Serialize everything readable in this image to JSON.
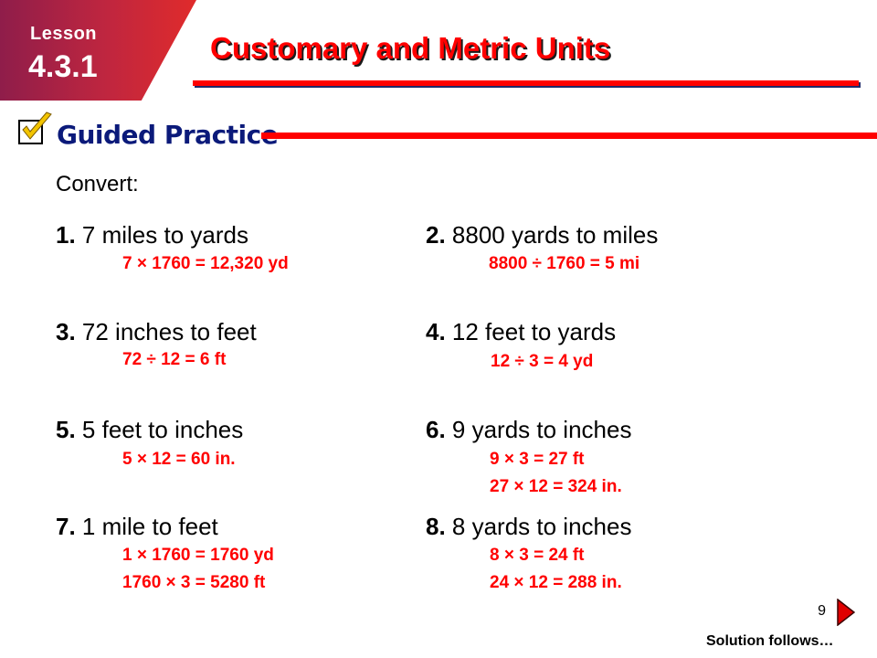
{
  "header": {
    "lesson_label": "Lesson",
    "lesson_number": "4.3.1",
    "title": "Customary and Metric Units",
    "section_label": "Guided Practice"
  },
  "prompt": "Convert:",
  "problems": [
    {
      "number": "1.",
      "text": " 7 miles to yards",
      "answers": [
        "7 × 1760 = 12,320 yd"
      ]
    },
    {
      "number": "2.",
      "text": " 8800 yards to miles",
      "answers": [
        "8800 ÷ 1760 = 5 mi"
      ]
    },
    {
      "number": "3.",
      "text": " 72 inches to feet",
      "answers": [
        "72 ÷ 12 = 6 ft"
      ]
    },
    {
      "number": "4.",
      "text": " 12 feet to yards",
      "answers": [
        "12 ÷ 3 = 4 yd"
      ]
    },
    {
      "number": "5.",
      "text": " 5 feet to inches",
      "answers": [
        "5 × 12 = 60 in."
      ]
    },
    {
      "number": "6.",
      "text": " 9 yards to inches",
      "answers": [
        "9 × 3 = 27 ft",
        "27 × 12 = 324 in."
      ]
    },
    {
      "number": "7.",
      "text": " 1 mile to feet",
      "answers": [
        "1 × 1760 = 1760 yd",
        "1760 × 3 = 5280 ft"
      ]
    },
    {
      "number": "8.",
      "text": " 8 yards to inches",
      "answers": [
        "8 × 3 = 24 ft",
        "24 × 12 = 288 in."
      ]
    }
  ],
  "footer": {
    "page_number": "9",
    "solution_text": "Solution follows…"
  },
  "colors": {
    "accent": "#ff0000",
    "heading_blue": "#0b1a7a",
    "badge": "#c0263f"
  },
  "icons": [
    "checkmark-icon",
    "next-arrow-icon"
  ]
}
